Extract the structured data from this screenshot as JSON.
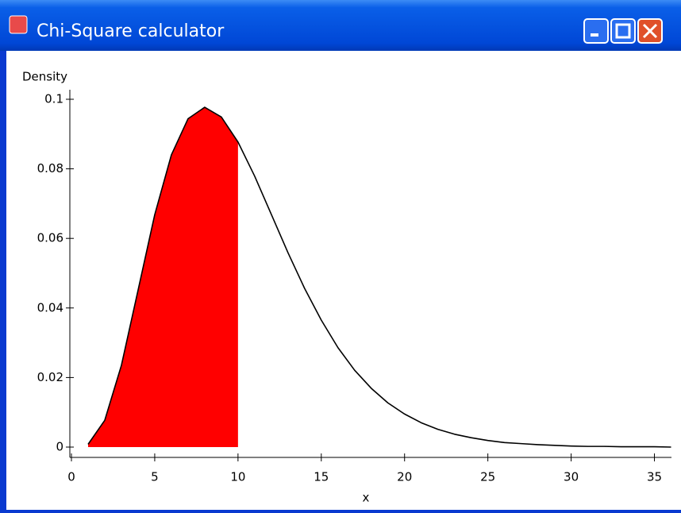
{
  "window": {
    "title": "Chi-Square calculator"
  },
  "chart_data": {
    "type": "line",
    "ylabel": "Density",
    "xlabel": "x",
    "x": [
      1,
      2,
      3,
      4,
      5,
      6,
      7,
      8,
      9,
      10,
      11,
      12,
      13,
      14,
      15,
      16,
      17,
      18,
      19,
      20,
      21,
      22,
      23,
      24,
      25,
      26,
      27,
      28,
      29,
      30,
      31,
      32,
      33,
      34,
      35,
      36
    ],
    "series": [
      {
        "name": "density",
        "color": "#000000",
        "values": [
          0.0008,
          0.0077,
          0.0235,
          0.0451,
          0.0668,
          0.084,
          0.0944,
          0.0977,
          0.0949,
          0.0877,
          0.0779,
          0.0669,
          0.0559,
          0.0456,
          0.0365,
          0.0286,
          0.0221,
          0.0169,
          0.0127,
          0.0095,
          0.007,
          0.0051,
          0.0037,
          0.0027,
          0.0019,
          0.0013,
          0.001,
          0.0007,
          0.0005,
          0.0003,
          0.0002,
          0.0002,
          0.0001,
          0.0001,
          0.0001,
          0.0
        ]
      }
    ],
    "shade": {
      "from": 1,
      "to": 10,
      "color": "#ff0000"
    },
    "xlim": [
      0,
      36.5
    ],
    "ylim": [
      0,
      0.1
    ],
    "xticks": [
      0,
      5,
      10,
      15,
      20,
      25,
      30,
      35
    ],
    "yticks": [
      0,
      0.02,
      0.04,
      0.06,
      0.08,
      0.1
    ]
  }
}
